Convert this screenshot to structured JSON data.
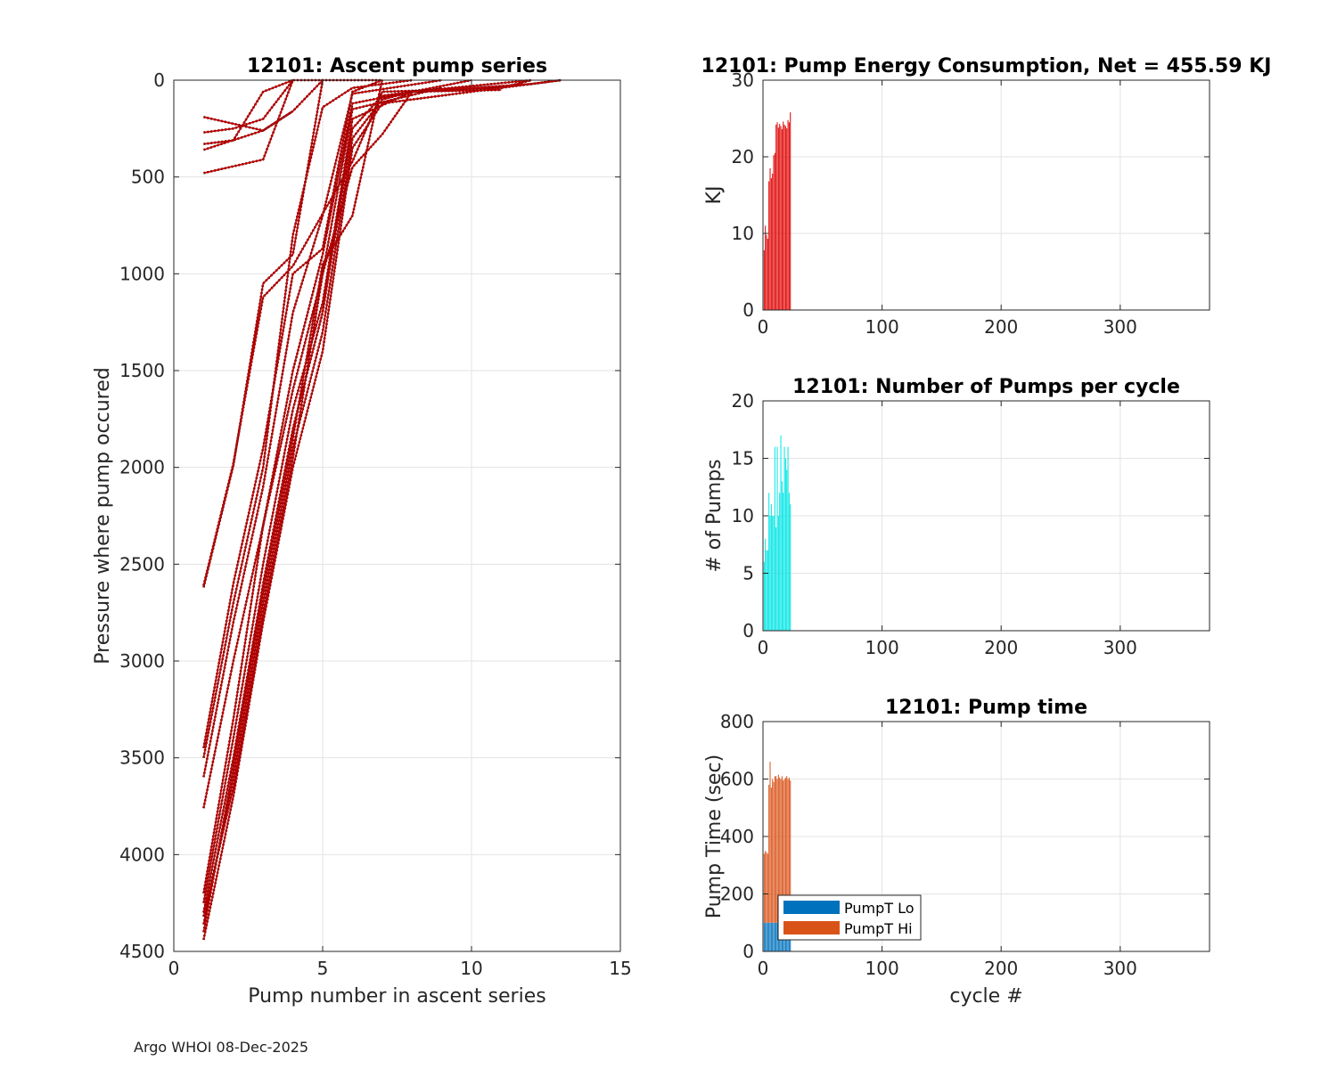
{
  "footer": "Argo WHOI 08-Dec-2025",
  "chart_data": [
    {
      "id": "ascent",
      "type": "line",
      "title": "12101: Ascent pump series",
      "xlabel": "Pump number in ascent series",
      "ylabel": "Pressure where pump occured",
      "xlim": [
        0,
        15
      ],
      "ylim": [
        4500,
        0
      ],
      "y_reversed": true,
      "xticks": [
        0,
        5,
        10,
        15
      ],
      "yticks": [
        0,
        500,
        1000,
        1500,
        2000,
        2500,
        3000,
        3500,
        4000,
        4500
      ],
      "grid": true,
      "line_color": "#c00000",
      "series": [
        {
          "x": [
            1,
            3,
            4
          ],
          "y": [
            190,
            260,
            160
          ]
        },
        {
          "x": [
            1,
            2,
            3,
            4
          ],
          "y": [
            270,
            250,
            200,
            0
          ]
        },
        {
          "x": [
            1,
            2,
            3,
            4
          ],
          "y": [
            330,
            310,
            60,
            0
          ]
        },
        {
          "x": [
            1,
            3,
            4,
            5
          ],
          "y": [
            360,
            260,
            160,
            0
          ]
        },
        {
          "x": [
            1,
            3,
            4,
            5
          ],
          "y": [
            480,
            410,
            0,
            0
          ]
        },
        {
          "x": [
            1,
            2,
            3,
            4,
            5,
            6,
            7
          ],
          "y": [
            2620,
            1990,
            1050,
            900,
            0,
            0,
            0
          ]
        },
        {
          "x": [
            1,
            2,
            3,
            4,
            6,
            7,
            11,
            12
          ],
          "y": [
            2610,
            1980,
            1120,
            960,
            420,
            60,
            40,
            0
          ]
        },
        {
          "x": [
            1,
            2,
            3,
            4,
            5,
            6,
            7
          ],
          "y": [
            3450,
            2600,
            1900,
            1000,
            870,
            60,
            0
          ]
        },
        {
          "x": [
            1,
            2,
            3,
            4,
            5,
            6,
            8
          ],
          "y": [
            3500,
            2700,
            2000,
            800,
            140,
            40,
            0
          ]
        },
        {
          "x": [
            1,
            2,
            3,
            4,
            5,
            6,
            9
          ],
          "y": [
            3600,
            2800,
            2100,
            1200,
            700,
            70,
            0
          ]
        },
        {
          "x": [
            1,
            2,
            3,
            4,
            5,
            6,
            10
          ],
          "y": [
            3760,
            3000,
            2300,
            1500,
            900,
            120,
            0
          ]
        },
        {
          "x": [
            1,
            2,
            3,
            4,
            5,
            6,
            9
          ],
          "y": [
            4200,
            3300,
            2300,
            1600,
            1000,
            150,
            40
          ]
        },
        {
          "x": [
            1,
            2,
            3,
            4,
            5,
            6,
            8
          ],
          "y": [
            4250,
            3400,
            2500,
            1700,
            1150,
            200,
            60
          ]
        },
        {
          "x": [
            1,
            2,
            3,
            4,
            5,
            6,
            7,
            8,
            11
          ],
          "y": [
            4300,
            3500,
            2600,
            1800,
            1200,
            250,
            80,
            60,
            50
          ]
        },
        {
          "x": [
            1,
            2,
            3,
            4,
            5,
            6,
            7,
            8,
            12
          ],
          "y": [
            4360,
            3600,
            2700,
            1900,
            1300,
            300,
            100,
            60,
            0
          ]
        },
        {
          "x": [
            1,
            2,
            3,
            4,
            5,
            6,
            7,
            10,
            13
          ],
          "y": [
            4440,
            3700,
            2800,
            2000,
            1400,
            350,
            120,
            60,
            0
          ]
        },
        {
          "x": [
            1,
            2,
            3,
            4,
            5,
            6,
            7,
            8,
            12,
            13
          ],
          "y": [
            4320,
            3650,
            2750,
            1950,
            1000,
            450,
            280,
            60,
            20,
            0
          ]
        },
        {
          "x": [
            1,
            2,
            3,
            4,
            5,
            6,
            7
          ],
          "y": [
            4400,
            3550,
            2650,
            1850,
            950,
            700,
            0
          ]
        }
      ]
    },
    {
      "id": "energy",
      "type": "bar",
      "title": "12101: Pump Energy Consumption,  Net = 455.59 KJ",
      "xlabel": "",
      "ylabel": "KJ",
      "xlim": [
        0,
        375
      ],
      "ylim": [
        0,
        30
      ],
      "xticks": [
        0,
        100,
        200,
        300
      ],
      "yticks": [
        0,
        10,
        20,
        30
      ],
      "grid": true,
      "bar_color": "#e00000",
      "x": [
        1,
        2,
        3,
        4,
        5,
        6,
        7,
        8,
        9,
        10,
        11,
        12,
        13,
        14,
        15,
        16,
        17,
        18,
        19,
        20,
        21,
        22,
        23
      ],
      "values": [
        7.8,
        11.0,
        9.8,
        9.3,
        16.8,
        18.5,
        17.2,
        17.8,
        20.2,
        20.5,
        24.2,
        24.5,
        23.8,
        24.3,
        24.0,
        23.6,
        24.6,
        24.2,
        24.0,
        23.7,
        24.8,
        24.5,
        25.8
      ]
    },
    {
      "id": "pumps",
      "type": "bar",
      "title": "12101: Number of Pumps per cycle",
      "xlabel": "",
      "ylabel": "# of Pumps",
      "xlim": [
        0,
        375
      ],
      "ylim": [
        0,
        20
      ],
      "xticks": [
        0,
        100,
        200,
        300
      ],
      "yticks": [
        0,
        5,
        10,
        15,
        20
      ],
      "grid": true,
      "bar_color": "#00e5e5",
      "x": [
        1,
        2,
        3,
        4,
        5,
        6,
        7,
        8,
        9,
        10,
        11,
        12,
        13,
        14,
        15,
        16,
        17,
        18,
        19,
        20,
        21,
        22,
        23
      ],
      "values": [
        6,
        8,
        7,
        7,
        12,
        10,
        11,
        10,
        10,
        16,
        9,
        16,
        10,
        12,
        17,
        13,
        12,
        16,
        15,
        14,
        16,
        12,
        11
      ]
    },
    {
      "id": "pumptime",
      "type": "bar",
      "stacked": true,
      "title": "12101: Pump time",
      "xlabel": "cycle #",
      "ylabel": "Pump Time (sec)",
      "xlim": [
        0,
        375
      ],
      "ylim": [
        0,
        800
      ],
      "xticks": [
        0,
        100,
        200,
        300
      ],
      "yticks": [
        0,
        200,
        400,
        600,
        800
      ],
      "grid": true,
      "legend": "bottom-left",
      "x": [
        1,
        2,
        3,
        4,
        5,
        6,
        7,
        8,
        9,
        10,
        11,
        12,
        13,
        14,
        15,
        16,
        17,
        18,
        19,
        20,
        21,
        22,
        23
      ],
      "series": [
        {
          "name": "PumpT Lo",
          "color": "#0072bd",
          "values": [
            100,
            100,
            100,
            100,
            100,
            100,
            100,
            100,
            100,
            100,
            100,
            100,
            100,
            100,
            100,
            100,
            100,
            100,
            100,
            100,
            100,
            100,
            100
          ]
        },
        {
          "name": "PumpT Hi",
          "color": "#d95319",
          "values": [
            240,
            250,
            245,
            240,
            480,
            560,
            470,
            500,
            490,
            510,
            510,
            500,
            515,
            505,
            500,
            510,
            495,
            500,
            505,
            510,
            500,
            505,
            495
          ]
        }
      ]
    }
  ]
}
